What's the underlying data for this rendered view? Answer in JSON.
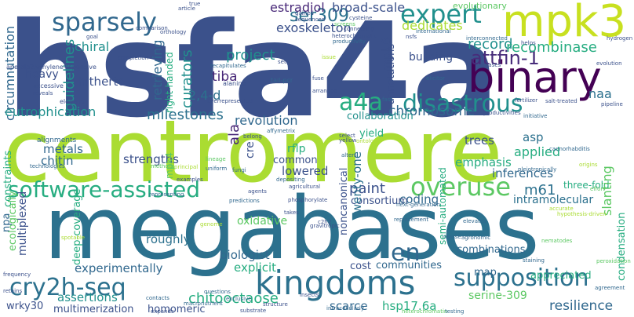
{
  "colors": {
    "background": "#ffffff",
    "palette": [
      "#440154",
      "#472c7a",
      "#3b518b",
      "#2c718e",
      "#21908d",
      "#27ad81",
      "#5cc863",
      "#aadc32",
      "#fde725"
    ]
  },
  "words": [
    {
      "text": "hsfa4a",
      "color": "#3b518b"
    },
    {
      "text": "centromere",
      "color": "#aadc32"
    },
    {
      "text": "megabases",
      "color": "#2c718e"
    },
    {
      "text": "binary",
      "color": "#440154"
    },
    {
      "text": "mpk3",
      "color": "#c8e020"
    },
    {
      "text": "kingdoms",
      "color": "#2c718e"
    },
    {
      "text": "software-assisted",
      "color": "#27ad81"
    },
    {
      "text": "sparsely",
      "color": "#31688e"
    },
    {
      "text": "expert",
      "color": "#21908d"
    },
    {
      "text": "overuse",
      "color": "#5cc863"
    },
    {
      "text": "a4a",
      "color": "#27ad81"
    },
    {
      "text": "disastrous",
      "color": "#21908d"
    },
    {
      "text": "cry2h-seq",
      "color": "#2c718e"
    },
    {
      "text": "supposition",
      "color": "#2c718e"
    },
    {
      "text": "attfin-1",
      "color": "#472c7a"
    },
    {
      "text": "ser309",
      "color": "#2c718e"
    },
    {
      "text": "estradiol",
      "color": "#482878"
    },
    {
      "text": "broad-scale",
      "color": "#3b518b"
    },
    {
      "text": "evolutionary",
      "color": "#5cc863"
    },
    {
      "text": "exoskeleton",
      "color": "#3b518b"
    },
    {
      "text": "chiral",
      "color": "#21908d"
    },
    {
      "text": "dedicates",
      "color": "#aadc32"
    },
    {
      "text": "record",
      "color": "#21908d"
    },
    {
      "text": "recombinase",
      "color": "#27ad81"
    },
    {
      "text": "project",
      "color": "#21908d"
    },
    {
      "text": "tiba",
      "color": "#482878"
    },
    {
      "text": "hitherto",
      "color": "#3b518b"
    },
    {
      "text": "heavy",
      "color": "#3b518b"
    },
    {
      "text": "guidelines",
      "color": "#21908d"
    },
    {
      "text": "curators",
      "color": "#21908d"
    },
    {
      "text": "2,4-d",
      "color": "#2c718e"
    },
    {
      "text": "retrieving",
      "color": "#31688e"
    },
    {
      "text": "right-handed",
      "color": "#27ad81"
    },
    {
      "text": "circumnutation",
      "color": "#31688e"
    },
    {
      "text": "eutrophication",
      "color": "#21908d"
    },
    {
      "text": "milestones",
      "color": "#2c718e"
    },
    {
      "text": "revolution",
      "color": "#31688e"
    },
    {
      "text": "chromosome",
      "color": "#31688e"
    },
    {
      "text": "collaboration",
      "color": "#21908d"
    },
    {
      "text": "annotations",
      "color": "#3b518b"
    },
    {
      "text": "mpk6",
      "color": "#3b518b"
    },
    {
      "text": "building",
      "color": "#3b518b"
    },
    {
      "text": "naa",
      "color": "#2c718e"
    },
    {
      "text": "metals",
      "color": "#31688e"
    },
    {
      "text": "chitin",
      "color": "#31688e"
    },
    {
      "text": "strengths",
      "color": "#3b518b"
    },
    {
      "text": "constraints",
      "color": "#27ad81"
    },
    {
      "text": "ala",
      "color": "#482878"
    },
    {
      "text": "cre",
      "color": "#3b518b"
    },
    {
      "text": "rflp",
      "color": "#27ad81"
    },
    {
      "text": "yield",
      "color": "#27ad81"
    },
    {
      "text": "trees",
      "color": "#3b518b"
    },
    {
      "text": "asp",
      "color": "#2c718e"
    },
    {
      "text": "applied",
      "color": "#27ad81"
    },
    {
      "text": "emphasis",
      "color": "#27ad81"
    },
    {
      "text": "inferences",
      "color": "#31688e"
    },
    {
      "text": "common",
      "color": "#3b518b"
    },
    {
      "text": "lowered",
      "color": "#3b518b"
    },
    {
      "text": "paint",
      "color": "#3b518b"
    },
    {
      "text": "m61",
      "color": "#2c718e"
    },
    {
      "text": "intramolecular",
      "color": "#2c718e"
    },
    {
      "text": "coding",
      "color": "#31688e"
    },
    {
      "text": "consortium",
      "color": "#3b518b"
    },
    {
      "text": "three-fold",
      "color": "#27ad81"
    },
    {
      "text": "slanting",
      "color": "#5cc863"
    },
    {
      "text": "condensation",
      "color": "#27ad81"
    },
    {
      "text": "multiplexed",
      "color": "#3b518b"
    },
    {
      "text": "ecologically",
      "color": "#5cc863"
    },
    {
      "text": "deep-coverage",
      "color": "#27ad81"
    },
    {
      "text": "oxidative",
      "color": "#5cc863"
    },
    {
      "text": "roughly",
      "color": "#2c718e"
    },
    {
      "text": "biologist",
      "color": "#31688e"
    },
    {
      "text": "experimentally",
      "color": "#31688e"
    },
    {
      "text": "explicit",
      "color": "#27ad81"
    },
    {
      "text": "noncanonical",
      "color": "#3b518b"
    },
    {
      "text": "twenty-one",
      "color": "#2c718e"
    },
    {
      "text": "semi-automated",
      "color": "#27ad81"
    },
    {
      "text": "combinations",
      "color": "#31688e"
    },
    {
      "text": "communities",
      "color": "#31688e"
    },
    {
      "text": "cost",
      "color": "#3b518b"
    },
    {
      "text": "map",
      "color": "#31688e"
    },
    {
      "text": "appreciated",
      "color": "#27ad81"
    },
    {
      "text": "en",
      "color": "#31688e"
    },
    {
      "text": "chitooctaose",
      "color": "#27ad81"
    },
    {
      "text": "assertions",
      "color": "#21908d"
    },
    {
      "text": "homomeric",
      "color": "#3b518b"
    },
    {
      "text": "scarce",
      "color": "#31688e"
    },
    {
      "text": "hsp17.6a",
      "color": "#27ad81"
    },
    {
      "text": "resilience",
      "color": "#31688e"
    },
    {
      "text": "serine-309",
      "color": "#5cc863"
    },
    {
      "text": "npa",
      "color": "#31688e"
    },
    {
      "text": "wrky30",
      "color": "#3b518b"
    },
    {
      "text": "multimerization",
      "color": "#3b518b"
    },
    {
      "text": "mpk4",
      "color": "#5cc863"
    },
    {
      "text": "alignments",
      "color": "#31688e"
    },
    {
      "text": "elegans",
      "color": "#3b518b"
    },
    {
      "text": "frequency",
      "color": "#3b518b"
    },
    {
      "text": "retains",
      "color": "#3b518b"
    },
    {
      "text": "apetala2/ethylene-reponsive",
      "color": "#3b518b"
    },
    {
      "text": "excessive",
      "color": "#3b518b"
    },
    {
      "text": "reveals",
      "color": "#3b518b"
    },
    {
      "text": "alanine",
      "color": "#3b518b"
    },
    {
      "text": "overrepresented",
      "color": "#3b518b"
    },
    {
      "text": "tail-pcr",
      "color": "#31688e"
    },
    {
      "text": "elicitor",
      "color": "#31688e"
    },
    {
      "text": "fast",
      "color": "#31688e"
    },
    {
      "text": "fuse",
      "color": "#3b518b"
    },
    {
      "text": "arranged",
      "color": "#3b518b"
    },
    {
      "text": "affymetrix",
      "color": "#31688e"
    },
    {
      "text": "yellow",
      "color": "#3b518b"
    },
    {
      "text": "belong",
      "color": "#3b518b"
    },
    {
      "text": "select",
      "color": "#3b518b"
    },
    {
      "text": "ontology",
      "color": "#aadc32"
    },
    {
      "text": "alters",
      "color": "#31688e"
    },
    {
      "text": "depositing",
      "color": "#31688e"
    },
    {
      "text": "agricultural",
      "color": "#3b518b"
    },
    {
      "text": "phosphorylate",
      "color": "#3b518b"
    },
    {
      "text": "replacement",
      "color": "#31688e"
    },
    {
      "text": "next-generation",
      "color": "#31688e"
    },
    {
      "text": "elevates",
      "color": "#31688e"
    },
    {
      "text": "masse",
      "color": "#31688e"
    },
    {
      "text": "agronomic",
      "color": "#31688e"
    },
    {
      "text": "staining",
      "color": "#31688e"
    },
    {
      "text": "peroxidation",
      "color": "#5cc863"
    },
    {
      "text": "agreement",
      "color": "#31688e"
    },
    {
      "text": "fungi",
      "color": "#31688e"
    },
    {
      "text": "uniform",
      "color": "#31688e"
    },
    {
      "text": "lineage",
      "color": "#5cc863"
    },
    {
      "text": "principal",
      "color": "#aadc32"
    },
    {
      "text": "examples",
      "color": "#3b518b"
    },
    {
      "text": "representing",
      "color": "#31688e"
    },
    {
      "text": "predictions",
      "color": "#31688e"
    },
    {
      "text": "agents",
      "color": "#3b518b"
    },
    {
      "text": "takes",
      "color": "#3b518b"
    },
    {
      "text": "c2h2",
      "color": "#3b518b"
    },
    {
      "text": "genome",
      "color": "#aadc32"
    },
    {
      "text": "questions",
      "color": "#31688e"
    },
    {
      "text": "exclusive",
      "color": "#31688e"
    },
    {
      "text": "insects",
      "color": "#3b518b"
    },
    {
      "text": "contacts",
      "color": "#31688e"
    },
    {
      "text": "macronutrient",
      "color": "#31688e"
    },
    {
      "text": "expands",
      "color": "#3b518b"
    },
    {
      "text": "substrate",
      "color": "#3b518b"
    },
    {
      "text": "structure",
      "color": "#3b518b"
    },
    {
      "text": "intracellularly",
      "color": "#31688e"
    },
    {
      "text": "heterochromatin",
      "color": "#5cc863"
    },
    {
      "text": "caenorhabditis",
      "color": "#31688e"
    },
    {
      "text": "origins",
      "color": "#aadc32"
    },
    {
      "text": "effort",
      "color": "#5cc863"
    },
    {
      "text": "accurate",
      "color": "#aadc32"
    },
    {
      "text": "pleiotropically",
      "color": "#31688e"
    },
    {
      "text": "productivities",
      "color": "#3b518b"
    },
    {
      "text": "fertilizer",
      "color": "#3b518b"
    },
    {
      "text": "salt-treated",
      "color": "#3b518b"
    },
    {
      "text": "pipeline",
      "color": "#3b518b"
    },
    {
      "text": "evolution",
      "color": "#3b518b"
    },
    {
      "text": "hydrogen",
      "color": "#3b518b"
    },
    {
      "text": "interconnected",
      "color": "#31688e"
    },
    {
      "text": "kinases",
      "color": "#3b518b"
    },
    {
      "text": "helps",
      "color": "#3b518b"
    },
    {
      "text": "nsfs",
      "color": "#3b518b"
    },
    {
      "text": "international",
      "color": "#31688e"
    },
    {
      "text": "heterochromatic",
      "color": "#3b518b"
    },
    {
      "text": "productivity",
      "color": "#31688e"
    },
    {
      "text": "connecting",
      "color": "#3b518b"
    },
    {
      "text": "cysteine",
      "color": "#3b518b"
    },
    {
      "text": "screens",
      "color": "#5cc863"
    },
    {
      "text": "sequenced",
      "color": "#3b518b"
    },
    {
      "text": "gained",
      "color": "#3b518b"
    },
    {
      "text": "article",
      "color": "#3b518b"
    },
    {
      "text": "true",
      "color": "#3b518b"
    },
    {
      "text": "comparison",
      "color": "#3b518b"
    },
    {
      "text": "orthology",
      "color": "#3b518b"
    },
    {
      "text": "goal",
      "color": "#3b518b"
    },
    {
      "text": "completion",
      "color": "#3b518b"
    },
    {
      "text": "recapitulates",
      "color": "#31688e"
    },
    {
      "text": "set",
      "color": "#3b518b"
    },
    {
      "text": "issue",
      "color": "#aadc32"
    },
    {
      "text": "technologies",
      "color": "#31688e"
    },
    {
      "text": "methods",
      "color": "#5cc863"
    },
    {
      "text": "testing",
      "color": "#31688e"
    },
    {
      "text": "initiative",
      "color": "#31688e"
    },
    {
      "text": "gravitropic",
      "color": "#3b518b"
    },
    {
      "text": "hypothesis-driven",
      "color": "#aadc32"
    },
    {
      "text": "nematodes",
      "color": "#5cc863"
    },
    {
      "text": "spotable",
      "color": "#aadc32"
    }
  ]
}
